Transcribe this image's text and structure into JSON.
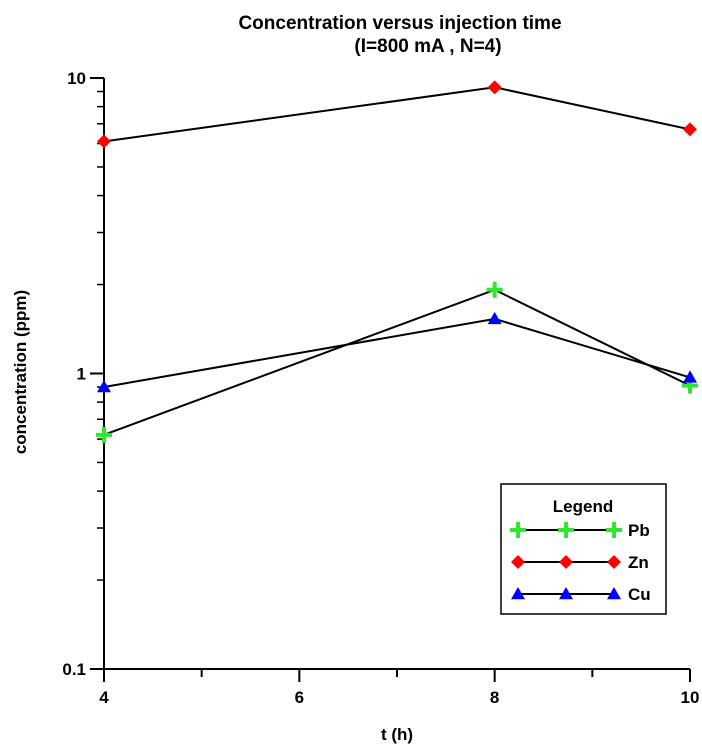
{
  "chart_data": {
    "type": "line",
    "title": "Concentration versus injection time",
    "subtitle": "(I=800 mA , N=4)",
    "xlabel": "t (h)",
    "ylabel": "concentration (ppm)",
    "x_scale": "linear",
    "y_scale": "log",
    "xlim": [
      4,
      10
    ],
    "ylim": [
      0.1,
      10
    ],
    "x_ticks": [
      4,
      6,
      8,
      10
    ],
    "x_tick_labels": [
      "4",
      "6",
      "8",
      "10"
    ],
    "y_ticks": [
      0.1,
      1,
      10
    ],
    "y_tick_labels": [
      "0.1",
      "1",
      "10"
    ],
    "grid": false,
    "legend": {
      "title": "Legend",
      "position": "bottom-right"
    },
    "series": [
      {
        "name": "Pb",
        "color": "#2ee82e",
        "marker": "plus",
        "x": [
          4,
          8,
          10
        ],
        "y": [
          0.62,
          1.92,
          0.91
        ]
      },
      {
        "name": "Zn",
        "color": "#ff0000",
        "marker": "diamond",
        "x": [
          4,
          8,
          10
        ],
        "y": [
          6.1,
          9.3,
          6.7
        ]
      },
      {
        "name": "Cu",
        "color": "#0000ff",
        "marker": "triangle",
        "x": [
          4,
          8,
          10
        ],
        "y": [
          0.9,
          1.53,
          0.97
        ]
      }
    ]
  }
}
